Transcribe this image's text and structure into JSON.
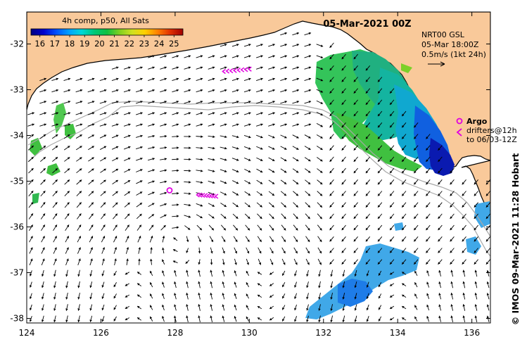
{
  "map": {
    "title": "05-Mar-2021 00Z",
    "product": {
      "line1": "NRT00 GSL",
      "line2": "05-Mar 18:00Z",
      "line3": "0.5m/s (1kt 24h)"
    },
    "colorbar": {
      "title": "4h comp, p50, All Sats",
      "ticks": [
        "16",
        "17",
        "18",
        "19",
        "20",
        "21",
        "22",
        "23",
        "24",
        "25"
      ],
      "min": 15.4,
      "max": 25.6,
      "colors": [
        "#000080",
        "#0000cd",
        "#0050ff",
        "#00a0ff",
        "#00d8d8",
        "#00c878",
        "#10c040",
        "#80d020",
        "#d0e020",
        "#ffd000",
        "#ff8000",
        "#e03000",
        "#a00000"
      ]
    },
    "legend": {
      "argo_label": "Argo",
      "drifters_label": "drifters@12h",
      "drifters_to": "to 06/03-12Z"
    },
    "credit": "© IMOS 09-Mar-2021 11:28 Hobart",
    "x_axis": {
      "labels": [
        "124",
        "126",
        "128",
        "130",
        "132",
        "134",
        "136"
      ],
      "values": [
        124,
        126,
        128,
        130,
        132,
        134,
        136
      ],
      "range": [
        124,
        136.5
      ]
    },
    "y_axis": {
      "labels": [
        "-32",
        "-33",
        "-34",
        "-35",
        "-36",
        "-37",
        "-38"
      ],
      "values": [
        -32,
        -33,
        -34,
        -35,
        -36,
        -37,
        -38
      ],
      "range": [
        -38.1,
        -31.3
      ]
    },
    "colors": {
      "land": "#f9c99a",
      "ocean": "#ffffff",
      "arrow": "#000000",
      "drifter": "#e000e0",
      "isobath": "#a8a8a8"
    },
    "argo_floats": [
      {
        "lon": 127.85,
        "lat": -35.2
      }
    ],
    "drifters": [
      {
        "lon_start": 129.3,
        "lat_start": -32.6,
        "lon_end": 130.0,
        "lat_end": -32.55
      },
      {
        "lon_start": 128.6,
        "lat_start": -35.3,
        "lon_end": 129.1,
        "lat_end": -35.33
      }
    ]
  }
}
